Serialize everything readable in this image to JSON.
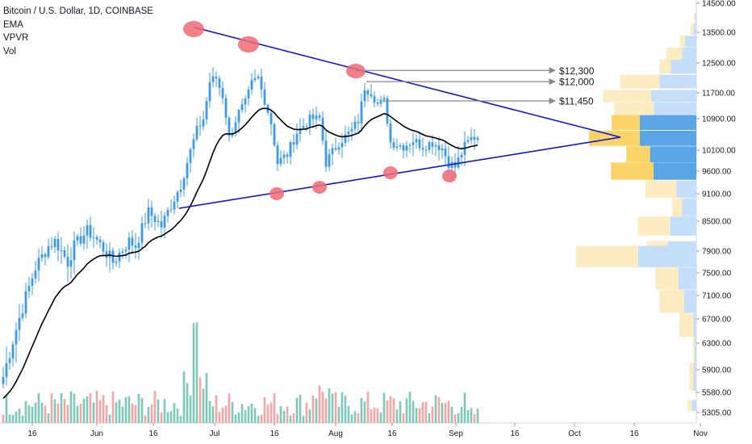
{
  "header": {
    "symbol": "Bitcoin / U.S. Dollar, 1D, COINBASE",
    "indicators": [
      "EMA",
      "VPVR",
      "Vol"
    ]
  },
  "colors": {
    "up": "#3d9ae8",
    "down": "#3d9ae8",
    "ema": "#000000",
    "trendline": "#1414d2",
    "marker": "#f06a73",
    "arrow": "#8a8a8a",
    "vol_up": "#80c8b9",
    "vol_down": "#f4a5a5",
    "vpvr_up_dark": "#5aa5e6",
    "vpvr_up_light": "#c5defa",
    "vpvr_down_dark": "#fbd468",
    "vpvr_down_light": "#fdebc2"
  },
  "chart_data": {
    "type": "candlestick",
    "price_axis": {
      "ticks": [
        "14500.00",
        "13500.00",
        "12500.00",
        "11700.00",
        "10900.00",
        "10100.00",
        "9600.00",
        "9100.00",
        "8500.00",
        "7900.00",
        "7500.00",
        "7100.00",
        "6700.00",
        "6300.00",
        "5900.00",
        "5580.00",
        "5305.00"
      ]
    },
    "time_axis": {
      "ticks": [
        "16",
        "Jun",
        "16",
        "Jul",
        "16",
        "Aug",
        "16",
        "Sep",
        "16",
        "Oct",
        "16",
        "Nov"
      ]
    },
    "annotations": [
      {
        "label": "$12,300",
        "price": 12300
      },
      {
        "label": "$12,000",
        "price": 12000
      },
      {
        "label": "$11,450",
        "price": 11450
      }
    ],
    "close_path": [
      [
        0,
        5800
      ],
      [
        6,
        6900
      ],
      [
        10,
        7600
      ],
      [
        14,
        8000
      ],
      [
        16,
        8100
      ],
      [
        20,
        7700
      ],
      [
        22,
        8000
      ],
      [
        26,
        8300
      ],
      [
        28,
        8200
      ],
      [
        34,
        7700
      ],
      [
        39,
        8100
      ],
      [
        41,
        8000
      ],
      [
        45,
        8700
      ],
      [
        49,
        8400
      ],
      [
        55,
        9300
      ],
      [
        60,
        10600
      ],
      [
        62,
        10900
      ],
      [
        64,
        12000
      ],
      [
        66,
        12100
      ],
      [
        68,
        11600
      ],
      [
        70,
        10400
      ],
      [
        73,
        11100
      ],
      [
        75,
        11400
      ],
      [
        77,
        11950
      ],
      [
        79,
        12100
      ],
      [
        83,
        10800
      ],
      [
        85,
        9800
      ],
      [
        88,
        10000
      ],
      [
        91,
        10550
      ],
      [
        95,
        10900
      ],
      [
        98,
        10900
      ],
      [
        100,
        9800
      ],
      [
        104,
        10300
      ],
      [
        106,
        10450
      ],
      [
        108,
        10600
      ],
      [
        110,
        10850
      ],
      [
        112,
        11850
      ],
      [
        114,
        11700
      ],
      [
        116,
        11350
      ],
      [
        118,
        11450
      ],
      [
        120,
        10300
      ],
      [
        124,
        10200
      ],
      [
        127,
        10350
      ],
      [
        130,
        10200
      ],
      [
        133,
        10300
      ],
      [
        136,
        10150
      ],
      [
        138,
        9800
      ],
      [
        140,
        9700
      ],
      [
        143,
        10200
      ],
      [
        145,
        10400
      ],
      [
        147,
        10450
      ]
    ],
    "vpvr": [
      {
        "price": 14000,
        "up": 2,
        "down": 2
      },
      {
        "price": 13600,
        "up": 5,
        "down": 5
      },
      {
        "price": 13200,
        "up": 20,
        "down": 9
      },
      {
        "price": 12800,
        "up": 25,
        "down": 28
      },
      {
        "price": 12400,
        "up": 45,
        "down": 20
      },
      {
        "price": 12000,
        "up": 65,
        "down": 70
      },
      {
        "price": 11600,
        "up": 80,
        "down": 85
      },
      {
        "price": 11200,
        "up": 75,
        "down": 70
      },
      {
        "price": 10800,
        "up": 100,
        "down": 50
      },
      {
        "price": 10400,
        "up": 100,
        "down": 90
      },
      {
        "price": 10000,
        "up": 82,
        "down": 42
      },
      {
        "price": 9600,
        "up": 76,
        "down": 75
      },
      {
        "price": 9200,
        "up": 35,
        "down": 55
      },
      {
        "price": 8800,
        "up": 25,
        "down": 18
      },
      {
        "price": 8400,
        "up": 46,
        "down": 57
      },
      {
        "price": 8000,
        "up": 50,
        "down": 38
      },
      {
        "price": 7800,
        "up": 103,
        "down": 110
      },
      {
        "price": 7400,
        "up": 32,
        "down": 40
      },
      {
        "price": 7000,
        "up": 22,
        "down": 43
      },
      {
        "price": 6600,
        "up": 5,
        "down": 25
      },
      {
        "price": 6200,
        "up": 3,
        "down": 3
      },
      {
        "price": 5800,
        "up": 5,
        "down": 7
      },
      {
        "price": 5400,
        "up": 8,
        "down": 8
      }
    ]
  }
}
